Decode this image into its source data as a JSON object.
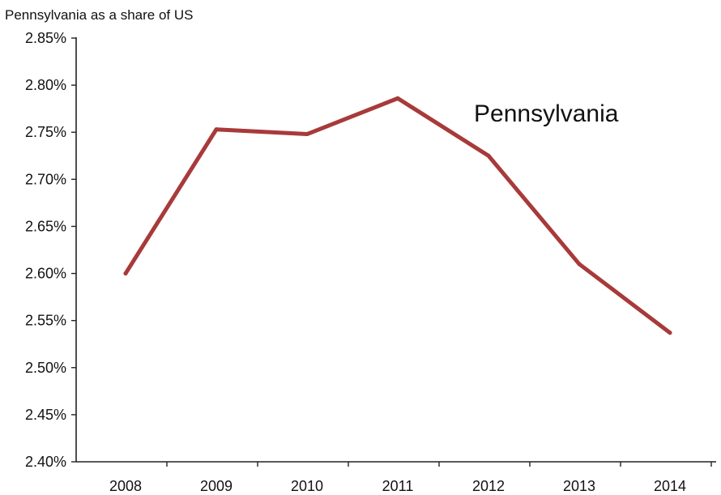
{
  "chart_data": {
    "type": "line",
    "title": "Pennsylvania  as a share of US",
    "xlabel": "",
    "ylabel": "",
    "categories": [
      "2008",
      "2009",
      "2010",
      "2011",
      "2012",
      "2013",
      "2014"
    ],
    "series": [
      {
        "name": "Pennsylvania",
        "values": [
          0.026,
          0.02753,
          0.02748,
          0.02786,
          0.02725,
          0.0261,
          0.02537
        ],
        "color": "#a83a3a"
      }
    ],
    "ylim": [
      0.024,
      0.0285
    ],
    "y_ticks": [
      0.024,
      0.0245,
      0.025,
      0.0255,
      0.026,
      0.0265,
      0.027,
      0.0275,
      0.028,
      0.0285
    ],
    "y_tick_labels": [
      "2.40%",
      "2.45%",
      "2.50%",
      "2.55%",
      "2.60%",
      "2.65%",
      "2.70%",
      "2.75%",
      "2.80%",
      "2.85%"
    ],
    "grid": false,
    "legend": "none"
  }
}
